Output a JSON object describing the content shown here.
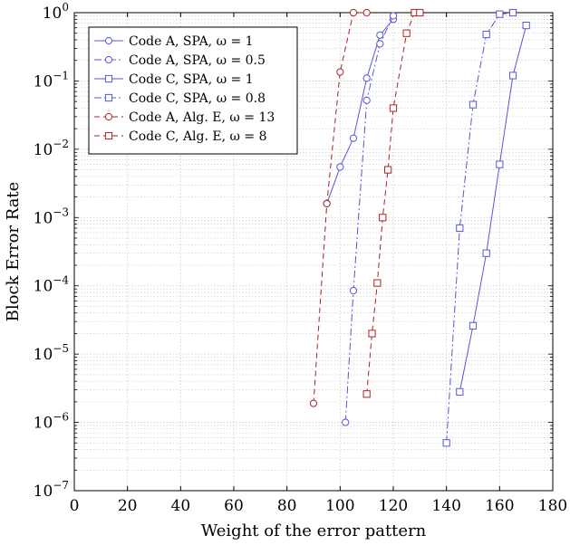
{
  "chart_data": {
    "type": "line",
    "title": "",
    "xlabel": "Weight of the error pattern",
    "ylabel": "Block Error Rate",
    "xlim": [
      0,
      180
    ],
    "ylim": [
      1e-07,
      1
    ],
    "yscale": "log",
    "xticks": [
      0,
      20,
      40,
      60,
      80,
      100,
      120,
      140,
      160,
      180
    ],
    "xtick_labels": [
      "0",
      "20",
      "40",
      "60",
      "80",
      "100",
      "120",
      "140",
      "160",
      "180"
    ],
    "yticks": [
      1e-07,
      1e-06,
      1e-05,
      0.0001,
      0.001,
      0.01,
      0.1,
      1
    ],
    "ytick_labels": [
      {
        "base": "10",
        "exp": "−7"
      },
      {
        "base": "10",
        "exp": "−6"
      },
      {
        "base": "10",
        "exp": "−5"
      },
      {
        "base": "10",
        "exp": "−4"
      },
      {
        "base": "10",
        "exp": "−3"
      },
      {
        "base": "10",
        "exp": "−2"
      },
      {
        "base": "10",
        "exp": "−1"
      },
      {
        "base": "10",
        "exp": "0"
      }
    ],
    "grid": true,
    "legend_position": "top-left",
    "series": [
      {
        "name": "Code A, SPA, ω = 1",
        "color": "#5555dd",
        "dash": "solid",
        "marker": "circle",
        "x": [
          95,
          100,
          105,
          110,
          115,
          120
        ],
        "y": [
          0.0016,
          0.0055,
          0.0145,
          0.11,
          0.47,
          0.8
        ]
      },
      {
        "name": "Code A, SPA, ω = 0.5",
        "color": "#5555dd",
        "dash": "dashdot",
        "marker": "circle",
        "x": [
          102,
          105,
          110,
          115,
          120
        ],
        "y": [
          1e-06,
          8.5e-05,
          0.052,
          0.35,
          0.9
        ]
      },
      {
        "name": "Code C, SPA, ω = 1",
        "color": "#5555dd",
        "dash": "solid",
        "marker": "square",
        "x": [
          145,
          150,
          155,
          160,
          165,
          170
        ],
        "y": [
          2.8e-06,
          2.6e-05,
          0.0003,
          0.006,
          0.12,
          0.65
        ]
      },
      {
        "name": "Code C, SPA, ω = 0.8",
        "color": "#5555dd",
        "dash": "dashdot",
        "marker": "square",
        "x": [
          140,
          145,
          150,
          155,
          160,
          165
        ],
        "y": [
          5e-07,
          0.0007,
          0.045,
          0.48,
          0.95,
          1.0
        ]
      },
      {
        "name": "Code A, Alg. E, ω = 13",
        "color": "#aa2222",
        "dash": "dashed",
        "marker": "circle",
        "x": [
          90,
          95,
          100,
          105,
          110
        ],
        "y": [
          1.9e-06,
          0.0016,
          0.135,
          1.0,
          1.0
        ]
      },
      {
        "name": "Code C, Alg. E, ω = 8",
        "color": "#aa2222",
        "dash": "dashed",
        "marker": "square",
        "x": [
          110,
          112,
          114,
          116,
          118,
          120,
          125,
          128,
          130
        ],
        "y": [
          2.6e-06,
          2e-05,
          0.00011,
          0.001,
          0.005,
          0.04,
          0.5,
          1.0,
          1.0
        ]
      }
    ]
  }
}
